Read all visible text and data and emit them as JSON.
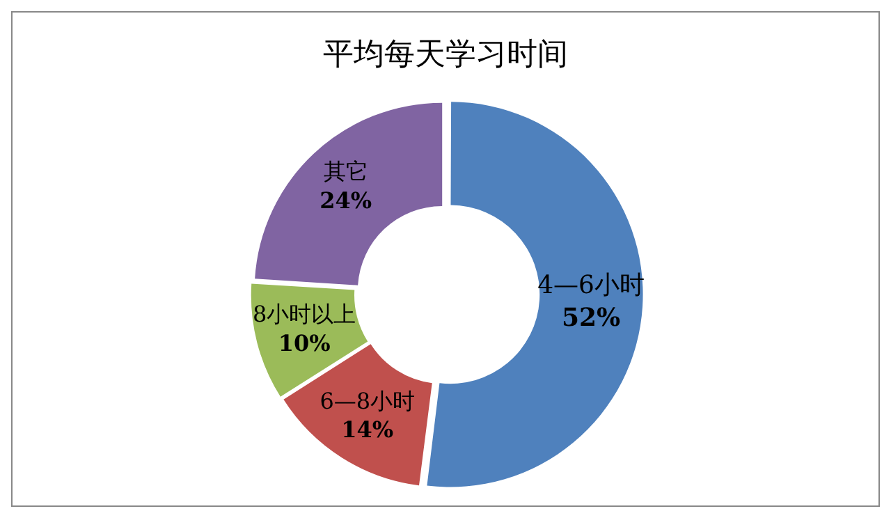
{
  "chart_data": {
    "type": "donut",
    "title": "平均每天学习时间",
    "categories": [
      "4—6小时",
      "6—8小时",
      "8小时以上",
      "其它"
    ],
    "values": [
      52,
      14,
      10,
      24
    ],
    "value_labels": [
      "52%",
      "14%",
      "10%",
      "24%"
    ],
    "colors": [
      "#4f81bd",
      "#c0504d",
      "#9bbb59",
      "#8064a2"
    ],
    "legend": false
  }
}
